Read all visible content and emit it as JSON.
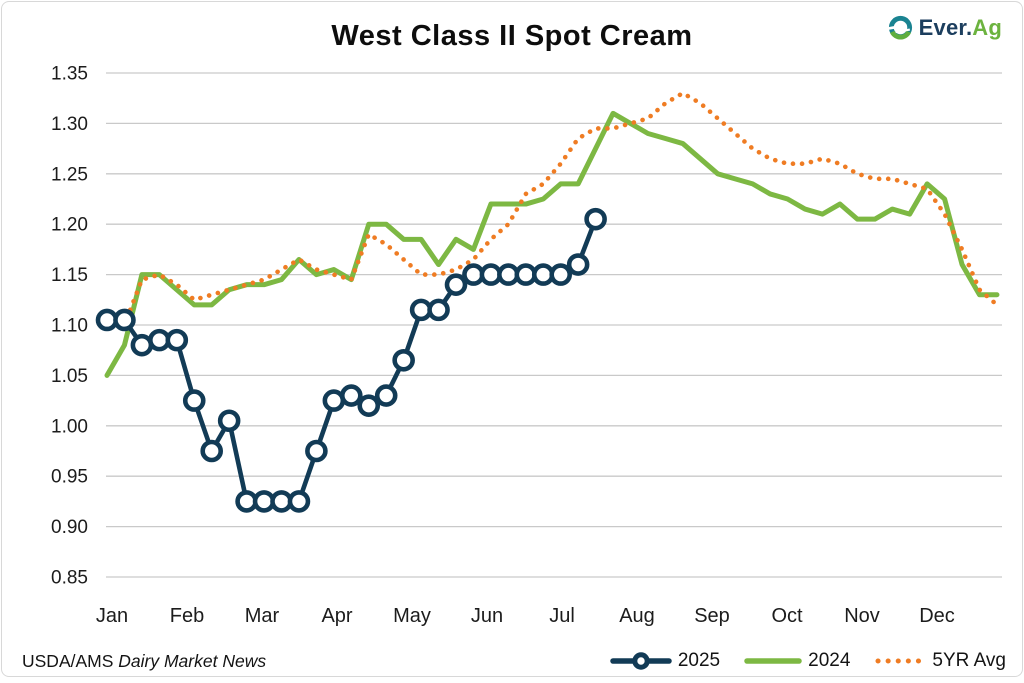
{
  "header": {
    "title": "West Class II Spot Cream",
    "logo": {
      "primary": "Ever.",
      "secondary": "Ag",
      "icon": "everag-circle-mark",
      "primary_color": "#1c3e5e",
      "secondary_color": "#6cb33f"
    }
  },
  "footer": {
    "source_prefix": "USDA/AMS",
    "source_name": "Dairy Market News"
  },
  "legend": {
    "position": "bottom-right",
    "items": [
      {
        "label": "2025",
        "swatch": "line-with-circle-marker",
        "color": "#123b56"
      },
      {
        "label": "2024",
        "swatch": "solid-line",
        "color": "#7db843"
      },
      {
        "label": "5YR Avg",
        "swatch": "dotted-line",
        "color": "#ef7c23"
      }
    ]
  },
  "colors": {
    "grid": "#c9c9c9",
    "text": "#1a1a1a",
    "border": "#d8d8d8",
    "background": "#ffffff"
  },
  "chart_data": {
    "type": "line",
    "title": "West Class II Spot Cream",
    "grid": true,
    "legend_position": "bottom-right",
    "x_axis": {
      "unit": "weekly",
      "months": [
        "Jan",
        "Feb",
        "Mar",
        "Apr",
        "May",
        "Jun",
        "Jul",
        "Aug",
        "Sep",
        "Oct",
        "Nov",
        "Dec"
      ]
    },
    "y_axis": {
      "min": 0.85,
      "max": 1.35,
      "step": 0.05,
      "ticks": [
        "1.35",
        "1.30",
        "1.25",
        "1.20",
        "1.15",
        "1.10",
        "1.05",
        "1.00",
        "0.95",
        "0.90",
        "0.85"
      ]
    },
    "series": [
      {
        "name": "2025",
        "color": "#123b56",
        "style": "solid-with-open-circle-markers",
        "values": [
          1.105,
          1.105,
          1.08,
          1.085,
          1.085,
          1.025,
          0.975,
          1.005,
          0.925,
          0.925,
          0.925,
          0.925,
          0.975,
          1.025,
          1.03,
          1.02,
          1.03,
          1.065,
          1.115,
          1.115,
          1.14,
          1.15,
          1.15,
          1.15,
          1.15,
          1.15,
          1.15,
          1.16,
          1.205
        ]
      },
      {
        "name": "2024",
        "color": "#7db843",
        "style": "solid",
        "values": [
          1.05,
          1.08,
          1.15,
          1.15,
          1.135,
          1.12,
          1.12,
          1.135,
          1.14,
          1.14,
          1.145,
          1.165,
          1.15,
          1.155,
          1.145,
          1.2,
          1.2,
          1.185,
          1.185,
          1.16,
          1.185,
          1.175,
          1.22,
          1.22,
          1.22,
          1.225,
          1.24,
          1.24,
          1.275,
          1.31,
          1.3,
          1.29,
          1.285,
          1.28,
          1.265,
          1.25,
          1.245,
          1.24,
          1.23,
          1.225,
          1.215,
          1.21,
          1.22,
          1.205,
          1.205,
          1.215,
          1.21,
          1.24,
          1.225,
          1.16,
          1.13,
          1.13
        ]
      },
      {
        "name": "5YR Avg",
        "color": "#ef7c23",
        "style": "dotted",
        "values": [
          1.11,
          1.1,
          1.145,
          1.15,
          1.14,
          1.125,
          1.13,
          1.135,
          1.14,
          1.145,
          1.155,
          1.165,
          1.155,
          1.15,
          1.145,
          1.19,
          1.18,
          1.165,
          1.15,
          1.15,
          1.155,
          1.165,
          1.185,
          1.2,
          1.23,
          1.24,
          1.26,
          1.285,
          1.295,
          1.295,
          1.3,
          1.305,
          1.32,
          1.33,
          1.32,
          1.305,
          1.29,
          1.275,
          1.265,
          1.26,
          1.26,
          1.265,
          1.26,
          1.25,
          1.245,
          1.245,
          1.24,
          1.235,
          1.21,
          1.175,
          1.135,
          1.12
        ]
      }
    ]
  }
}
